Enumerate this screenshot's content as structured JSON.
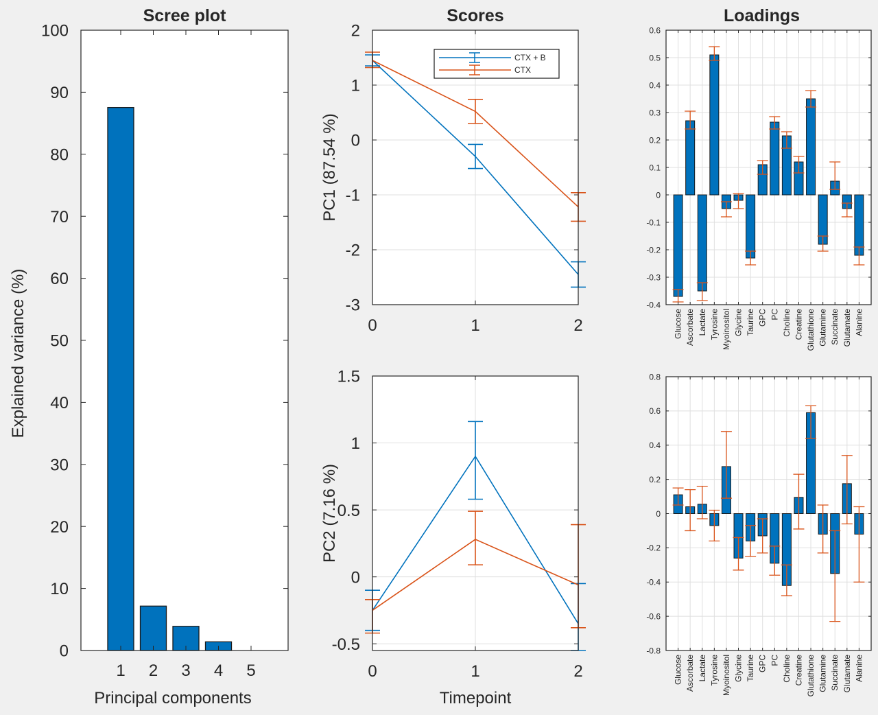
{
  "colors": {
    "blue": "#0072bd",
    "orange": "#d95319",
    "grid": "#dfdfdf",
    "axis": "#262626",
    "background": "#f0f0f0"
  },
  "chart_data": [
    {
      "id": "scree",
      "type": "bar",
      "title": "Scree plot",
      "xlabel": "Principal components",
      "ylabel": "Explained variance (%)",
      "categories": [
        "1",
        "2",
        "3",
        "4",
        "5"
      ],
      "values": [
        87.54,
        7.16,
        3.9,
        1.4,
        0
      ],
      "ylim": [
        0,
        100
      ],
      "yticks": [
        0,
        10,
        20,
        30,
        40,
        50,
        60,
        70,
        80,
        90,
        100
      ],
      "grid": false
    },
    {
      "id": "scores_pc1",
      "type": "line",
      "title": "Scores",
      "xlabel": "",
      "ylabel": "PC1 (87.54 %)",
      "x": [
        0,
        1,
        2
      ],
      "xticks": [
        0,
        1,
        2
      ],
      "ylim": [
        -3,
        2
      ],
      "yticks": [
        -3,
        -2,
        -1,
        0,
        1,
        2
      ],
      "grid": true,
      "legend": {
        "placement": "top-right"
      },
      "series": [
        {
          "name": "CTX + B",
          "color": "blue",
          "values": [
            1.45,
            -0.3,
            -2.45
          ],
          "lower": [
            1.35,
            -0.52,
            -2.68
          ],
          "upper": [
            1.55,
            -0.08,
            -2.22
          ]
        },
        {
          "name": "CTX",
          "color": "orange",
          "values": [
            1.45,
            0.52,
            -1.22
          ],
          "lower": [
            1.32,
            0.3,
            -1.48
          ],
          "upper": [
            1.6,
            0.74,
            -0.96
          ]
        }
      ]
    },
    {
      "id": "scores_pc2",
      "type": "line",
      "title": "",
      "xlabel": "Timepoint",
      "ylabel": "PC2 (7.16 %)",
      "x": [
        0,
        1,
        2
      ],
      "xticks": [
        0,
        1,
        2
      ],
      "ylim": [
        -0.55,
        1.5
      ],
      "yticks": [
        -0.5,
        0,
        0.5,
        1,
        1.5
      ],
      "grid": true,
      "series": [
        {
          "name": "CTX + B",
          "color": "blue",
          "values": [
            -0.25,
            0.9,
            -0.35
          ],
          "lower": [
            -0.4,
            0.58,
            -0.55
          ],
          "upper": [
            -0.1,
            1.16,
            -0.05
          ]
        },
        {
          "name": "CTX",
          "color": "orange",
          "values": [
            -0.25,
            0.28,
            -0.06
          ],
          "lower": [
            -0.42,
            0.09,
            -0.38
          ],
          "upper": [
            -0.17,
            0.49,
            0.39
          ]
        }
      ]
    },
    {
      "id": "loadings_pc1",
      "type": "bar",
      "title": "Loadings",
      "xlabel": "",
      "ylabel": "",
      "categories": [
        "Glucose",
        "Ascorbate",
        "Lactate",
        "Tyrosine",
        "Myoinositol",
        "Glycine",
        "Taurine",
        "GPC",
        "PC",
        "Choline",
        "Creatine",
        "Glutathione",
        "Glutamine",
        "Succinate",
        "Glutamate",
        "Alanine"
      ],
      "values": [
        -0.37,
        0.27,
        -0.35,
        0.51,
        -0.05,
        -0.02,
        -0.23,
        0.11,
        0.265,
        0.215,
        0.12,
        0.35,
        -0.18,
        0.05,
        -0.05,
        -0.22
      ],
      "lower": [
        -0.39,
        0.24,
        -0.385,
        0.49,
        -0.08,
        -0.05,
        -0.255,
        0.075,
        0.24,
        0.17,
        0.08,
        0.32,
        -0.205,
        0.02,
        -0.08,
        -0.255
      ],
      "upper": [
        -0.345,
        0.305,
        -0.32,
        0.54,
        -0.025,
        0.005,
        -0.205,
        0.125,
        0.285,
        0.23,
        0.14,
        0.38,
        -0.15,
        0.12,
        -0.03,
        -0.19
      ],
      "ylim": [
        -0.4,
        0.6
      ],
      "yticks": [
        -0.4,
        -0.3,
        -0.2,
        -0.1,
        0,
        0.1,
        0.2,
        0.3,
        0.4,
        0.5,
        0.6
      ],
      "grid": true
    },
    {
      "id": "loadings_pc2",
      "type": "bar",
      "title": "",
      "xlabel": "",
      "ylabel": "",
      "categories": [
        "Glucose",
        "Ascorbate",
        "Lactate",
        "Tyrosine",
        "Myoinositol",
        "Glycine",
        "Taurine",
        "GPC",
        "PC",
        "Choline",
        "Creatine",
        "Glutathione",
        "Glutamine",
        "Succinate",
        "Glutamate",
        "Alanine"
      ],
      "values": [
        0.11,
        0.04,
        0.055,
        -0.07,
        0.275,
        -0.26,
        -0.16,
        -0.13,
        -0.29,
        -0.42,
        0.095,
        0.59,
        -0.12,
        -0.35,
        0.175,
        -0.12
      ],
      "lower": [
        0.05,
        -0.1,
        -0.03,
        -0.16,
        0.09,
        -0.33,
        -0.25,
        -0.23,
        -0.36,
        -0.48,
        -0.09,
        0.44,
        -0.23,
        -0.63,
        -0.06,
        -0.4
      ],
      "upper": [
        0.15,
        0.14,
        0.16,
        0.02,
        0.48,
        -0.14,
        -0.07,
        -0.03,
        -0.19,
        -0.3,
        0.23,
        0.63,
        0.05,
        -0.1,
        0.34,
        0.04
      ],
      "ylim": [
        -0.8,
        0.8
      ],
      "yticks": [
        -0.8,
        -0.6,
        -0.4,
        -0.2,
        0,
        0.2,
        0.4,
        0.6,
        0.8
      ],
      "grid": true
    }
  ]
}
